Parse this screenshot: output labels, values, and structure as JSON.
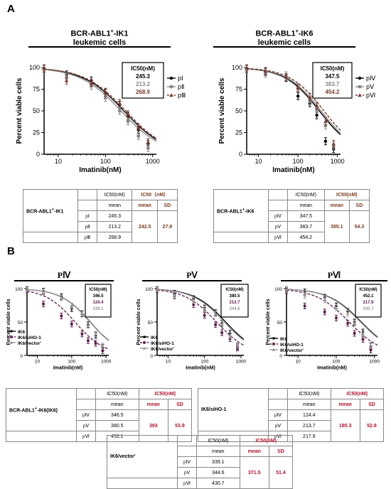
{
  "panels": {
    "A": "A",
    "B": "B"
  },
  "panelA": {
    "left_title_1": "BCR-ABL1",
    "left_title_sup": "+",
    "left_title_2": "-IK1",
    "left_title_3": "leukemic cells",
    "right_title_1": "BCR-ABL1",
    "right_title_sup": "+",
    "right_title_2": "-IK6",
    "right_title_3": "leukemic cells"
  },
  "panelB": {
    "titles": [
      "PⅣ",
      "PⅤ",
      "PⅥ"
    ]
  },
  "chart_data": [
    {
      "type": "line",
      "id": "A-left",
      "xlabel": "Imatinib(nM)",
      "ylabel": "Percent viable cells",
      "xscale": "log",
      "xlim": [
        5,
        1200
      ],
      "ylim": [
        0,
        100
      ],
      "xticks": [
        "10",
        "100",
        "1000"
      ],
      "yticks": [
        "0",
        "25",
        "50",
        "75",
        "100"
      ],
      "box_title": "IC50(nM)",
      "ic50_labels": [
        "245.3",
        "213.2",
        "268.9"
      ],
      "legend": [
        "pⅠ",
        "pⅡ",
        "pⅢ"
      ],
      "colors": [
        "#000000",
        "#888888",
        "#7a3b2e"
      ],
      "dashed": [
        false,
        false,
        true
      ],
      "ic50": [
        245.3,
        213.2,
        268.9
      ],
      "x": [
        5,
        15,
        50,
        100,
        200,
        300,
        500,
        800
      ],
      "series": [
        {
          "name": "pⅠ",
          "values": [
            99,
            92,
            85,
            71,
            57,
            44,
            28,
            12
          ]
        },
        {
          "name": "pⅡ",
          "values": [
            98,
            88,
            79,
            65,
            50,
            38,
            21,
            7
          ]
        },
        {
          "name": "pⅢ",
          "values": [
            99,
            85,
            82,
            72,
            59,
            46,
            31,
            14
          ]
        }
      ]
    },
    {
      "type": "line",
      "id": "A-right",
      "xlabel": "Imatinib(nM)",
      "ylabel": "Percent viable cells",
      "xscale": "log",
      "xlim": [
        5,
        1200
      ],
      "ylim": [
        0,
        100
      ],
      "xticks": [
        "10",
        "100",
        "1000"
      ],
      "yticks": [
        "0",
        "25",
        "50",
        "75",
        "100"
      ],
      "box_title": "IC50(nM)",
      "ic50_labels": [
        "347.5",
        "383.7",
        "454.2"
      ],
      "legend": [
        "pⅣ",
        "pⅤ",
        "pⅥ"
      ],
      "colors": [
        "#000000",
        "#888888",
        "#7a3b2e"
      ],
      "dashed": [
        false,
        false,
        true
      ],
      "ic50": [
        347.5,
        383.7,
        454.2
      ],
      "x": [
        5,
        15,
        50,
        100,
        200,
        300,
        500,
        800
      ],
      "series": [
        {
          "name": "pⅣ",
          "values": [
            99,
            95,
            88,
            67,
            59,
            45,
            15,
            6
          ]
        },
        {
          "name": "pⅤ",
          "values": [
            98,
            93,
            91,
            76,
            61,
            52,
            33,
            10
          ]
        },
        {
          "name": "pⅥ",
          "values": [
            99,
            96,
            89,
            77,
            66,
            56,
            38,
            12
          ]
        }
      ]
    },
    {
      "type": "line",
      "id": "B-PIV",
      "xlabel": "Imatinib(nM)",
      "ylabel": "Percent viable cells",
      "xscale": "log",
      "xlim": [
        5,
        1200
      ],
      "ylim": [
        0,
        100
      ],
      "xticks": [
        "10",
        "100",
        "1000"
      ],
      "yticks": [
        "0",
        "50",
        "100"
      ],
      "box_title": "IC50(nM)",
      "ic50_labels": [
        "346.5",
        "124.4",
        "339.1"
      ],
      "legend": [
        "IK6",
        "IK6/siHO-1",
        "IK6/vector'"
      ],
      "colors": [
        "#000000",
        "#5c1a4a",
        "#999999"
      ],
      "dashed": [
        false,
        true,
        false
      ],
      "ic50": [
        346.5,
        124.4,
        339.1
      ],
      "x": [
        5,
        15,
        50,
        100,
        200,
        300,
        500,
        800
      ],
      "series": [
        {
          "name": "IK6",
          "values": [
            99,
            96,
            88,
            70,
            62,
            46,
            30,
            12
          ]
        },
        {
          "name": "IK6/siHO-1",
          "values": [
            98,
            77,
            59,
            47,
            32,
            22,
            18,
            7
          ]
        },
        {
          "name": "IK6/vector'",
          "values": [
            99,
            95,
            86,
            74,
            63,
            45,
            32,
            14
          ]
        }
      ]
    },
    {
      "type": "line",
      "id": "B-PV",
      "xlabel": "Imatinib(nM)",
      "ylabel": "Percent viable cells",
      "xscale": "log",
      "xlim": [
        5,
        1200
      ],
      "ylim": [
        0,
        100
      ],
      "xticks": [
        "10",
        "100",
        "1000"
      ],
      "yticks": [
        "0",
        "50",
        "100"
      ],
      "box_title": "IC50(nM)",
      "ic50_labels": [
        "380.5",
        "213.7",
        "344.6"
      ],
      "legend": [
        "IK6",
        "IK6/siHO-1",
        "IK6/vector'"
      ],
      "colors": [
        "#000000",
        "#5c1a4a",
        "#999999"
      ],
      "dashed": [
        false,
        true,
        false
      ],
      "ic50": [
        380.5,
        213.7,
        344.6
      ],
      "x": [
        5,
        15,
        50,
        100,
        200,
        300,
        500,
        800
      ],
      "series": [
        {
          "name": "IK6",
          "values": [
            99,
            93,
            85,
            71,
            64,
            48,
            33,
            13
          ]
        },
        {
          "name": "IK6/siHO-1",
          "values": [
            98,
            89,
            76,
            60,
            46,
            34,
            25,
            11
          ]
        },
        {
          "name": "IK6/vector'",
          "values": [
            99,
            90,
            82,
            70,
            62,
            47,
            30,
            15
          ]
        }
      ]
    },
    {
      "type": "line",
      "id": "B-PVI",
      "xlabel": "Imatinib(nM)",
      "ylabel": "Percent viable cells",
      "xscale": "log",
      "xlim": [
        5,
        1200
      ],
      "ylim": [
        0,
        100
      ],
      "xticks": [
        "10",
        "100",
        "1000"
      ],
      "yticks": [
        "0",
        "50",
        "100"
      ],
      "box_title": "IC50(nM)",
      "ic50_labels": [
        "452.1",
        "217.9",
        "430.7"
      ],
      "legend": [
        "IK6",
        "IK6/siHO-1",
        "IK6/vector'"
      ],
      "colors": [
        "#000000",
        "#5c1a4a",
        "#999999"
      ],
      "dashed": [
        false,
        true,
        false
      ],
      "ic50": [
        452.1,
        217.9,
        430.7
      ],
      "x": [
        5,
        15,
        50,
        100,
        200,
        300,
        500,
        800
      ],
      "series": [
        {
          "name": "IK6",
          "values": [
            99,
            95,
            87,
            74,
            66,
            50,
            35,
            14
          ]
        },
        {
          "name": "IK6/siHO-1",
          "values": [
            97,
            74,
            65,
            56,
            48,
            33,
            24,
            8
          ]
        },
        {
          "name": "IK6/vector'",
          "values": [
            99,
            90,
            83,
            71,
            63,
            49,
            31,
            15
          ]
        }
      ]
    }
  ],
  "tables": {
    "A1": {
      "h_ic50": "IC50(nM)",
      "h_mean": "mean",
      "h_ic50_group": "IC50（nM）",
      "h_mean2": "mean",
      "h_sd": "SD",
      "row_label": "BCR-ABL1",
      "row_label_sup": "+",
      "row_label_end": "-IK1",
      "rows": [
        {
          "name": "pⅠ",
          "val": "245.3"
        },
        {
          "name": "pⅡ",
          "val": "213.2"
        },
        {
          "name": "pⅢ",
          "val": "268.9"
        }
      ],
      "mean": "242.5",
      "sd": "27.9"
    },
    "A2": {
      "h_ic50": "IC50(nM)",
      "h_mean": "mean",
      "h_ic50_group": "IC50(nM)",
      "h_mean2": "mean",
      "h_sd": "SD",
      "row_label": "BCR-ABL1",
      "row_label_sup": "+",
      "row_label_end": "-IK6",
      "rows": [
        {
          "name": "pⅣ",
          "val": "347.5"
        },
        {
          "name": "pⅤ",
          "val": "383.7"
        },
        {
          "name": "pⅥ",
          "val": "454.2"
        }
      ],
      "mean": "395.1",
      "sd": "54.3"
    },
    "B1": {
      "h_ic50": "IC50(nM)",
      "h_mean": "mean",
      "h_ic50_group": "IC50(nM)",
      "h_mean2": "mean",
      "h_sd": "SD",
      "row_label": "BCR-ABL1",
      "row_label_sup": "+",
      "row_label_end": "-IK6(IK6)",
      "rows": [
        {
          "name": "pⅣ",
          "val": "346.5"
        },
        {
          "name": "pⅤ",
          "val": "380.5"
        },
        {
          "name": "pⅥ",
          "val": "452.1"
        }
      ],
      "mean": "393",
      "sd": "53.9"
    },
    "B2": {
      "h_ic50": "IC50(nM)",
      "h_mean": "mean",
      "h_ic50_group": "IC50(nM)",
      "h_mean2": "mean",
      "h_sd": "SD",
      "row_label": "IK6/siHO-1",
      "row_label_sup": "",
      "row_label_end": "",
      "rows": [
        {
          "name": "pⅣ",
          "val": "124.4"
        },
        {
          "name": "pⅤ",
          "val": "213.7"
        },
        {
          "name": "pⅥ",
          "val": "217.9"
        }
      ],
      "mean": "185.3",
      "sd": "52.8"
    },
    "B3": {
      "h_ic50": "IC50(nM)",
      "h_mean": "mean",
      "h_ic50_group": "IC50(nM)",
      "h_mean2": "mean",
      "h_sd": "SD",
      "row_label": "IK6/vector'",
      "row_label_sup": "",
      "row_label_end": "",
      "rows": [
        {
          "name": "pⅣ",
          "val": "339.1"
        },
        {
          "name": "pⅤ",
          "val": "344.6"
        },
        {
          "name": "pⅥ",
          "val": "430.7"
        }
      ],
      "mean": "371.5",
      "sd": "51.4"
    }
  }
}
